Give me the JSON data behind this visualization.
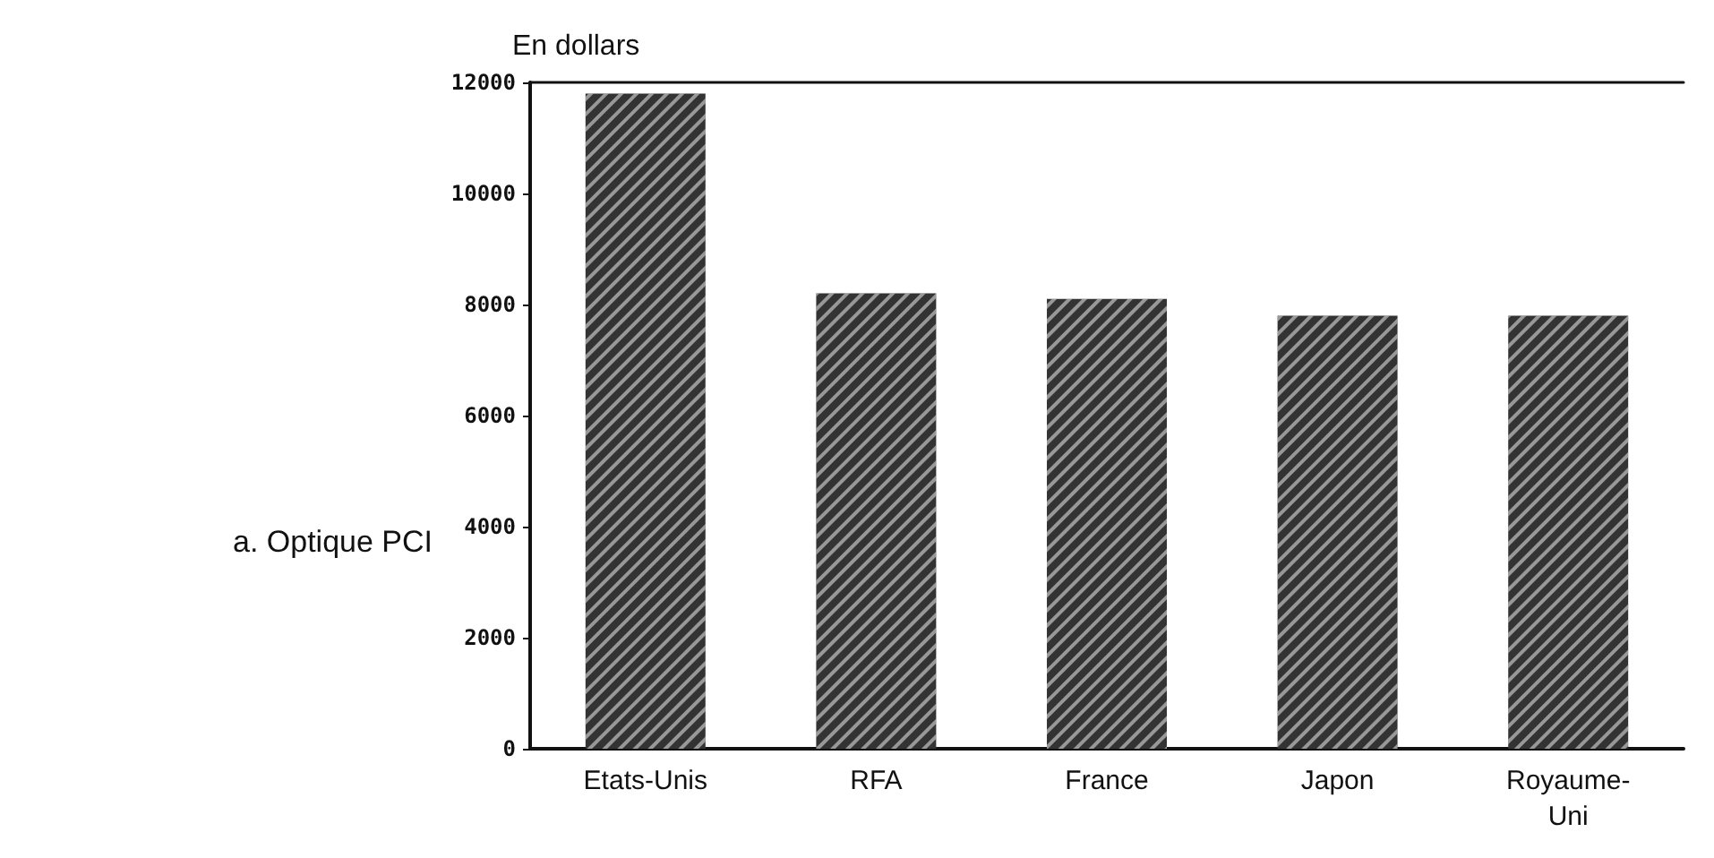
{
  "chart_data": {
    "type": "bar",
    "ylabel": "En dollars",
    "annotations": [
      "a. Optique PCI"
    ],
    "categories": [
      "Etats-Unis",
      "RFA",
      "France",
      "Japon",
      "Royaume-\nUni"
    ],
    "values": [
      11800,
      8200,
      8100,
      7800,
      7800
    ],
    "color": "#333333",
    "ylim": [
      0,
      12000
    ],
    "yticks": [
      0,
      2000,
      4000,
      6000,
      8000,
      10000,
      12000
    ],
    "grid": false
  }
}
